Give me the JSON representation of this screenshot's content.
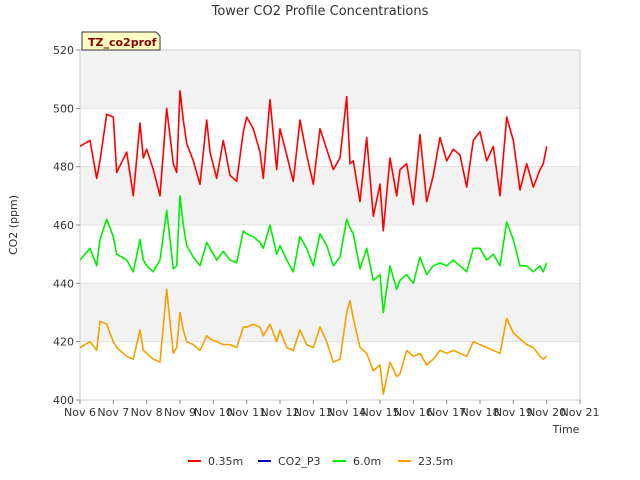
{
  "chart_data": {
    "type": "line",
    "title": "Tower CO2 Profile Concentrations",
    "tag": "TZ_co2prof",
    "xlabel": "Time",
    "ylabel": "CO2 (ppm)",
    "ylim": [
      400,
      520
    ],
    "yticks": [
      400,
      420,
      440,
      460,
      480,
      500,
      520
    ],
    "xlim": [
      6,
      21
    ],
    "xtick_values": [
      6,
      7,
      8,
      9,
      10,
      11,
      12,
      13,
      14,
      15,
      16,
      17,
      18,
      19,
      20,
      21
    ],
    "xtick_labels": [
      "Nov 6",
      "Nov 7",
      "Nov 8",
      "Nov 9",
      "Nov 10",
      "Nov 11",
      "Nov 12",
      "Nov 13",
      "Nov 14",
      "Nov 15",
      "Nov 16",
      "Nov 17",
      "Nov 18",
      "Nov 19",
      "Nov 20",
      "Nov 21"
    ],
    "grid": true,
    "series": [
      {
        "name": "0.35m",
        "color": "#ff0000",
        "x": [
          6.0,
          6.3,
          6.5,
          6.6,
          6.8,
          7.0,
          7.1,
          7.4,
          7.6,
          7.8,
          7.9,
          8.0,
          8.2,
          8.4,
          8.6,
          8.8,
          8.9,
          9.0,
          9.1,
          9.2,
          9.4,
          9.6,
          9.8,
          9.9,
          10.1,
          10.3,
          10.5,
          10.7,
          10.9,
          11.0,
          11.2,
          11.4,
          11.5,
          11.7,
          11.9,
          12.0,
          12.2,
          12.4,
          12.6,
          12.8,
          13.0,
          13.2,
          13.4,
          13.6,
          13.8,
          14.0,
          14.1,
          14.2,
          14.4,
          14.6,
          14.8,
          15.0,
          15.1,
          15.3,
          15.5,
          15.6,
          15.8,
          16.0,
          16.2,
          16.4,
          16.6,
          16.8,
          17.0,
          17.2,
          17.4,
          17.6,
          17.8,
          18.0,
          18.2,
          18.4,
          18.6,
          18.8,
          19.0,
          19.2,
          19.4,
          19.6,
          19.8,
          19.9,
          20.0
        ],
        "values": [
          487,
          489,
          476,
          482,
          498,
          497,
          478,
          485,
          470,
          495,
          483,
          486,
          479,
          470,
          500,
          481,
          478,
          506,
          496,
          488,
          482,
          474,
          496,
          485,
          476,
          489,
          477,
          475,
          492,
          497,
          493,
          485,
          476,
          503,
          479,
          493,
          484,
          475,
          496,
          484,
          474,
          493,
          486,
          479,
          483,
          504,
          481,
          482,
          468,
          490,
          463,
          474,
          458,
          483,
          470,
          479,
          481,
          467,
          491,
          468,
          477,
          490,
          482,
          486,
          484,
          473,
          489,
          492,
          482,
          487,
          470,
          497,
          489,
          472,
          481,
          473,
          479,
          481,
          487
        ]
      },
      {
        "name": "CO2_P3",
        "color": "#0000cc",
        "x": [],
        "values": []
      },
      {
        "name": "6.0m",
        "color": "#00ee00",
        "x": [
          6.0,
          6.3,
          6.5,
          6.6,
          6.8,
          7.0,
          7.1,
          7.4,
          7.6,
          7.8,
          7.9,
          8.0,
          8.2,
          8.4,
          8.6,
          8.8,
          8.9,
          9.0,
          9.1,
          9.2,
          9.4,
          9.6,
          9.8,
          9.9,
          10.1,
          10.3,
          10.5,
          10.7,
          10.9,
          11.0,
          11.2,
          11.4,
          11.5,
          11.7,
          11.9,
          12.0,
          12.2,
          12.4,
          12.6,
          12.8,
          13.0,
          13.2,
          13.4,
          13.6,
          13.8,
          14.0,
          14.1,
          14.2,
          14.4,
          14.6,
          14.8,
          15.0,
          15.1,
          15.3,
          15.5,
          15.6,
          15.8,
          16.0,
          16.2,
          16.4,
          16.6,
          16.8,
          17.0,
          17.2,
          17.4,
          17.6,
          17.8,
          18.0,
          18.2,
          18.4,
          18.6,
          18.8,
          19.0,
          19.2,
          19.4,
          19.6,
          19.8,
          19.9,
          20.0
        ],
        "values": [
          448,
          452,
          446,
          455,
          462,
          456,
          450,
          448,
          444,
          455,
          448,
          446,
          444,
          448,
          465,
          445,
          446,
          470,
          460,
          453,
          449,
          446,
          454,
          452,
          448,
          451,
          448,
          447,
          458,
          457,
          456,
          454,
          452,
          460,
          450,
          453,
          448,
          444,
          456,
          452,
          446,
          457,
          453,
          446,
          449,
          462,
          459,
          457,
          445,
          452,
          441,
          443,
          430,
          446,
          438,
          441,
          443,
          440,
          449,
          443,
          446,
          447,
          446,
          448,
          446,
          444,
          452,
          452,
          448,
          450,
          446,
          461,
          455,
          446,
          446,
          444,
          446,
          444,
          447
        ]
      },
      {
        "name": "23.5m",
        "color": "#f5a000",
        "x": [
          6.0,
          6.3,
          6.5,
          6.6,
          6.8,
          7.0,
          7.1,
          7.4,
          7.6,
          7.8,
          7.9,
          8.0,
          8.2,
          8.4,
          8.6,
          8.8,
          8.9,
          9.0,
          9.1,
          9.2,
          9.4,
          9.6,
          9.8,
          9.9,
          10.1,
          10.3,
          10.5,
          10.7,
          10.9,
          11.0,
          11.2,
          11.4,
          11.5,
          11.7,
          11.9,
          12.0,
          12.2,
          12.4,
          12.6,
          12.8,
          13.0,
          13.2,
          13.4,
          13.6,
          13.8,
          14.0,
          14.1,
          14.2,
          14.4,
          14.6,
          14.8,
          15.0,
          15.1,
          15.3,
          15.5,
          15.6,
          15.8,
          16.0,
          16.2,
          16.4,
          16.6,
          16.8,
          17.0,
          17.2,
          17.4,
          17.6,
          17.8,
          18.0,
          18.2,
          18.4,
          18.6,
          18.8,
          19.0,
          19.2,
          19.4,
          19.6,
          19.8,
          19.9,
          20.0
        ],
        "values": [
          418,
          420,
          417,
          427,
          426,
          420,
          418,
          415,
          414,
          424,
          417,
          416,
          414,
          413,
          438,
          416,
          418,
          430,
          424,
          420,
          419,
          417,
          422,
          421,
          420,
          419,
          419,
          418,
          425,
          425,
          426,
          425,
          422,
          426,
          420,
          424,
          418,
          417,
          424,
          419,
          418,
          425,
          420,
          413,
          414,
          430,
          434,
          428,
          418,
          416,
          410,
          412,
          402,
          413,
          408,
          409,
          417,
          415,
          416,
          412,
          414,
          417,
          416,
          417,
          416,
          415,
          420,
          419,
          418,
          417,
          416,
          428,
          423,
          421,
          419,
          418,
          415,
          414,
          415
        ]
      }
    ]
  }
}
